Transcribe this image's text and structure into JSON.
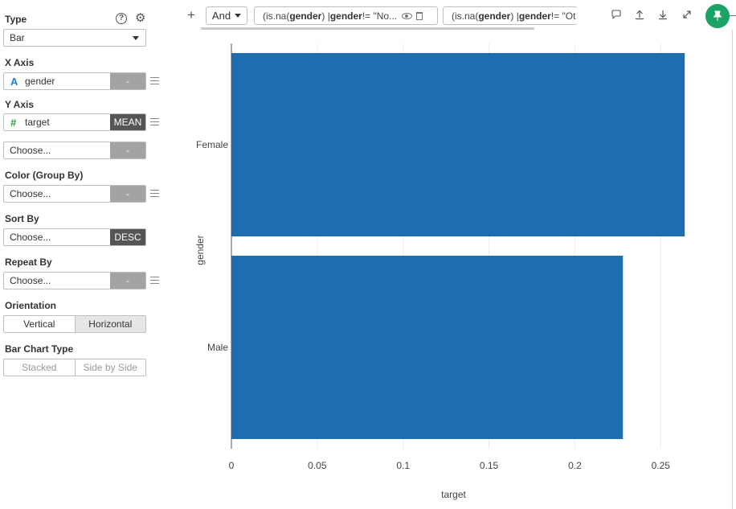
{
  "panel": {
    "type_label": "Type",
    "type_value": "Bar",
    "x_axis_label": "X Axis",
    "x_axis_field": "gender",
    "x_axis_icon": "A",
    "x_axis_tag": "-",
    "y_axis_label": "Y Axis",
    "y_axis_field": "target",
    "y_axis_icon": "#",
    "y_axis_tag": "MEAN",
    "extra_field": "Choose...",
    "extra_tag": "-",
    "color_label": "Color (Group By)",
    "color_field": "Choose...",
    "color_tag": "-",
    "sort_label": "Sort By",
    "sort_field": "Choose...",
    "sort_tag": "DESC",
    "repeat_label": "Repeat By",
    "repeat_field": "Choose...",
    "repeat_tag": "-",
    "orientation_label": "Orientation",
    "orientation_options": [
      "Vertical",
      "Horizontal"
    ],
    "orientation_selected": "Horizontal",
    "barchart_label": "Bar Chart Type",
    "barchart_options": [
      "Stacked",
      "Side by Side"
    ],
    "help_icon_glyph": "?"
  },
  "toolbar": {
    "add_glyph": "+",
    "logic_value": "And",
    "filters": [
      {
        "prefix": "(is.na(",
        "col": "gender",
        "mid": ") | ",
        "col2": "gender",
        "suffix": " != \"No..."
      },
      {
        "prefix": "(is.na(",
        "col": "gender",
        "mid": ") | ",
        "col2": "gender",
        "suffix": " != \"Ot"
      }
    ]
  },
  "colors": {
    "bar": "#1f6db1",
    "accent_green": "#1aa364"
  },
  "chart_data": {
    "type": "bar",
    "orientation": "horizontal",
    "categories": [
      "Female",
      "Male"
    ],
    "values": [
      0.264,
      0.228
    ],
    "xlabel": "target",
    "ylabel": "gender",
    "xlim": [
      0,
      0.27
    ],
    "ticks": [
      0,
      0.05,
      0.1,
      0.15,
      0.2,
      0.25
    ],
    "tick_labels": [
      "0",
      "0.05",
      "0.1",
      "0.15",
      "0.2",
      "0.25"
    ],
    "grid": true
  }
}
